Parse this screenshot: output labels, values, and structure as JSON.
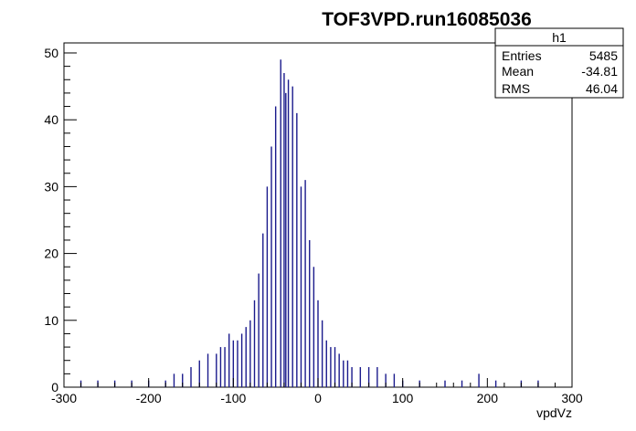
{
  "chart_data": {
    "type": "bar",
    "title": "TOF3VPD.run16085036",
    "xlabel": "vpdVz",
    "ylabel": "",
    "xlim": [
      -300,
      300
    ],
    "ylim": [
      0,
      51.5
    ],
    "x_ticks": [
      "-300",
      "-200",
      "-100",
      "0",
      "100",
      "200",
      "300"
    ],
    "y_ticks": [
      "0",
      "10",
      "20",
      "30",
      "40",
      "50"
    ],
    "grid": false,
    "color": "#1a1a8c",
    "bin_width": 1,
    "stats": {
      "name": "h1",
      "rows": [
        {
          "label": "Entries",
          "value": "5485"
        },
        {
          "label": "Mean",
          "value": "-34.81"
        },
        {
          "label": "RMS",
          "value": "46.04"
        }
      ]
    },
    "peak_bins": [
      {
        "x": -44,
        "value": 49
      },
      {
        "x": -40,
        "value": 47
      },
      {
        "x": -35,
        "value": 46
      },
      {
        "x": -30,
        "value": 45
      },
      {
        "x": -50,
        "value": 42
      },
      {
        "x": -38,
        "value": 44
      },
      {
        "x": -25,
        "value": 41
      },
      {
        "x": -20,
        "value": 30
      },
      {
        "x": -15,
        "value": 31
      },
      {
        "x": -55,
        "value": 36
      },
      {
        "x": -60,
        "value": 30
      },
      {
        "x": -65,
        "value": 23
      },
      {
        "x": -70,
        "value": 17
      },
      {
        "x": -10,
        "value": 22
      },
      {
        "x": -5,
        "value": 18
      },
      {
        "x": 0,
        "value": 13
      },
      {
        "x": 5,
        "value": 10
      },
      {
        "x": 10,
        "value": 7
      },
      {
        "x": 15,
        "value": 6
      },
      {
        "x": 20,
        "value": 6
      },
      {
        "x": 25,
        "value": 5
      },
      {
        "x": 30,
        "value": 4
      },
      {
        "x": 35,
        "value": 4
      },
      {
        "x": 40,
        "value": 3
      },
      {
        "x": 50,
        "value": 3
      },
      {
        "x": 60,
        "value": 3
      },
      {
        "x": 70,
        "value": 3
      },
      {
        "x": 80,
        "value": 2
      },
      {
        "x": 90,
        "value": 2
      },
      {
        "x": 100,
        "value": 1
      },
      {
        "x": 120,
        "value": 1
      },
      {
        "x": 150,
        "value": 1
      },
      {
        "x": 170,
        "value": 1
      },
      {
        "x": 190,
        "value": 2
      },
      {
        "x": 210,
        "value": 1
      },
      {
        "x": 240,
        "value": 1
      },
      {
        "x": 260,
        "value": 1
      },
      {
        "x": -75,
        "value": 13
      },
      {
        "x": -80,
        "value": 10
      },
      {
        "x": -85,
        "value": 9
      },
      {
        "x": -90,
        "value": 8
      },
      {
        "x": -95,
        "value": 7
      },
      {
        "x": -100,
        "value": 7
      },
      {
        "x": -105,
        "value": 8
      },
      {
        "x": -110,
        "value": 6
      },
      {
        "x": -115,
        "value": 6
      },
      {
        "x": -120,
        "value": 5
      },
      {
        "x": -130,
        "value": 5
      },
      {
        "x": -140,
        "value": 4
      },
      {
        "x": -150,
        "value": 3
      },
      {
        "x": -160,
        "value": 2
      },
      {
        "x": -170,
        "value": 2
      },
      {
        "x": -180,
        "value": 1
      },
      {
        "x": -200,
        "value": 1
      },
      {
        "x": -220,
        "value": 1
      },
      {
        "x": -240,
        "value": 1
      },
      {
        "x": -260,
        "value": 1
      },
      {
        "x": -280,
        "value": 1
      }
    ]
  }
}
